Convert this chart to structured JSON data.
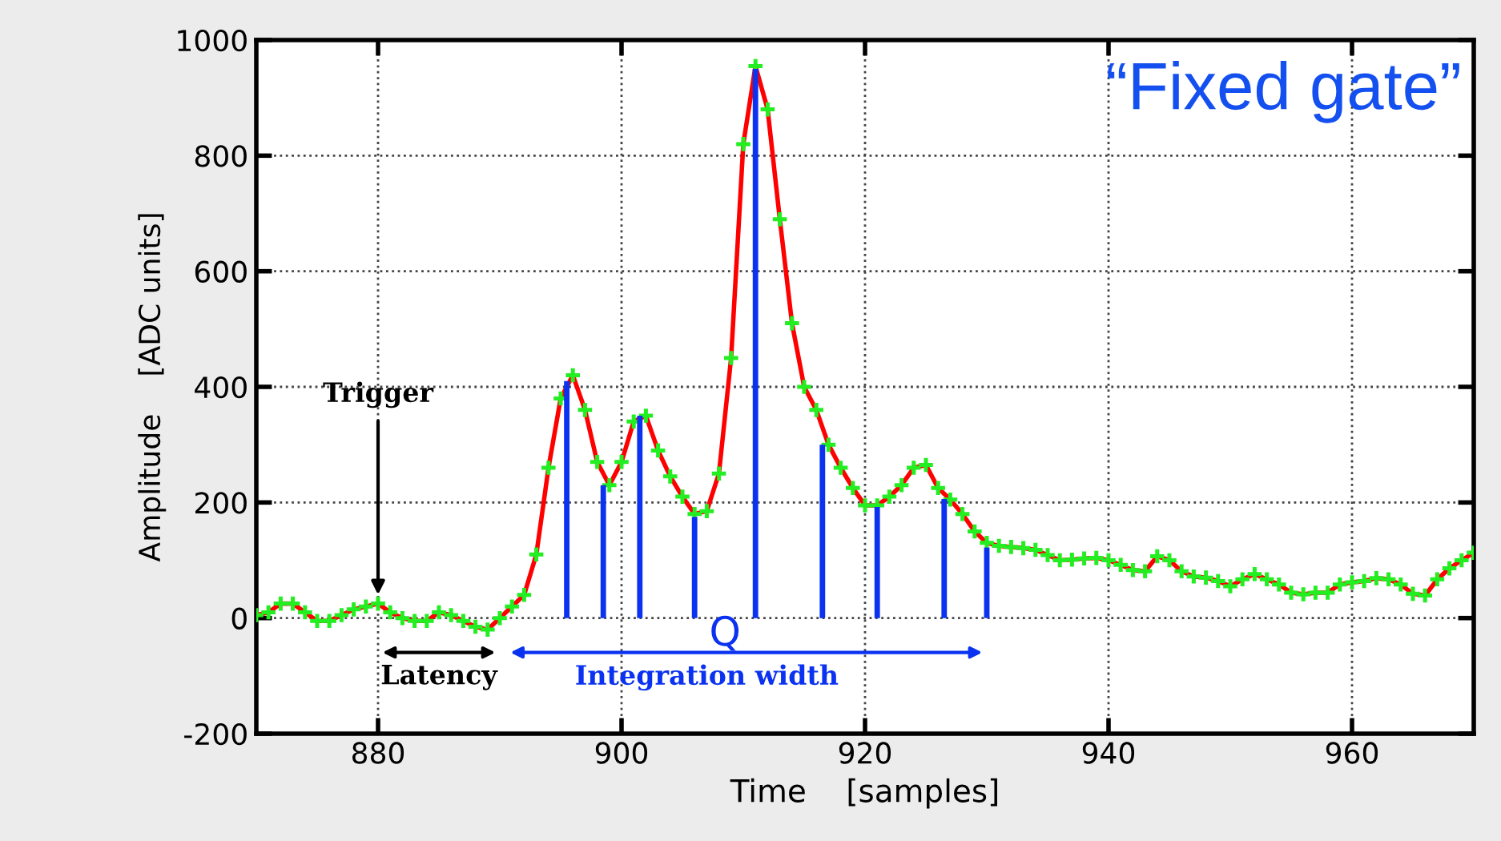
{
  "chart_data": {
    "type": "line",
    "xlabel": "Time    [samples]",
    "ylabel": "Amplitude    [ADC units]",
    "xlim": [
      870,
      970
    ],
    "ylim": [
      -200,
      1000
    ],
    "xticks": [
      880,
      900,
      920,
      940,
      960
    ],
    "yticks": [
      -200,
      0,
      200,
      400,
      600,
      800,
      1000
    ],
    "grid": true,
    "x": [
      870,
      871,
      872,
      873,
      874,
      875,
      876,
      877,
      878,
      879,
      880,
      881,
      882,
      883,
      884,
      885,
      886,
      887,
      888,
      889,
      890,
      891,
      892,
      893,
      894,
      895,
      896,
      897,
      898,
      899,
      900,
      901,
      902,
      903,
      904,
      905,
      906,
      907,
      908,
      909,
      910,
      911,
      912,
      913,
      914,
      915,
      916,
      917,
      918,
      919,
      920,
      921,
      922,
      923,
      924,
      925,
      926,
      927,
      928,
      929,
      930,
      931,
      932,
      933,
      934,
      935,
      936,
      937,
      938,
      939,
      940,
      941,
      942,
      943,
      944,
      945,
      946,
      947,
      948,
      949,
      950,
      951,
      952,
      953,
      954,
      955,
      956,
      957,
      958,
      959,
      960,
      961,
      962,
      963,
      964,
      965,
      966,
      967,
      968,
      969,
      970
    ],
    "series": [
      {
        "color": "#ff0000",
        "marker": "none",
        "line_style": "solid",
        "values": [
          5,
          10,
          25,
          25,
          10,
          -5,
          -5,
          5,
          15,
          20,
          25,
          10,
          0,
          -5,
          -5,
          10,
          5,
          -5,
          -15,
          -20,
          0,
          20,
          40,
          110,
          260,
          380,
          420,
          360,
          270,
          230,
          270,
          340,
          350,
          290,
          245,
          210,
          180,
          185,
          250,
          450,
          820,
          955,
          880,
          690,
          510,
          400,
          360,
          300,
          260,
          225,
          195,
          195,
          210,
          230,
          260,
          265,
          225,
          205,
          180,
          150,
          130,
          125,
          123,
          121,
          118,
          109,
          100,
          101,
          103,
          104,
          100,
          92,
          83,
          81,
          107,
          100,
          81,
          72,
          70,
          64,
          55,
          67,
          76,
          67,
          58,
          44,
          41,
          44,
          44,
          58,
          62,
          64,
          69,
          67,
          58,
          42,
          39,
          67,
          86,
          100,
          113
        ]
      },
      {
        "type": "scatter",
        "color": "#22ee22",
        "marker": "cross",
        "values": [
          5,
          10,
          25,
          25,
          10,
          -5,
          -5,
          5,
          15,
          20,
          25,
          10,
          0,
          -5,
          -5,
          10,
          5,
          -5,
          -15,
          -20,
          0,
          20,
          40,
          110,
          260,
          380,
          420,
          360,
          270,
          230,
          270,
          340,
          350,
          290,
          245,
          210,
          180,
          185,
          250,
          450,
          820,
          955,
          880,
          690,
          510,
          400,
          360,
          300,
          260,
          225,
          195,
          195,
          210,
          230,
          260,
          265,
          225,
          205,
          180,
          150,
          130,
          125,
          123,
          121,
          118,
          109,
          100,
          101,
          103,
          104,
          100,
          92,
          83,
          81,
          107,
          100,
          81,
          72,
          70,
          64,
          55,
          67,
          76,
          67,
          58,
          44,
          41,
          44,
          44,
          58,
          62,
          64,
          69,
          67,
          58,
          42,
          39,
          67,
          86,
          100,
          113
        ]
      },
      {
        "type": "bar",
        "color": "#0a32f0",
        "x": [
          895.5,
          898.5,
          901.5,
          906,
          911,
          916.5,
          921,
          926.5,
          930
        ],
        "values": [
          410,
          230,
          350,
          175,
          950,
          300,
          192,
          206,
          122
        ]
      }
    ],
    "annotations": [
      "“Fixed gate”",
      {
        "text": "Trigger",
        "x": 880,
        "y": 25
      },
      "Latency",
      "Integration width",
      "Q"
    ]
  }
}
